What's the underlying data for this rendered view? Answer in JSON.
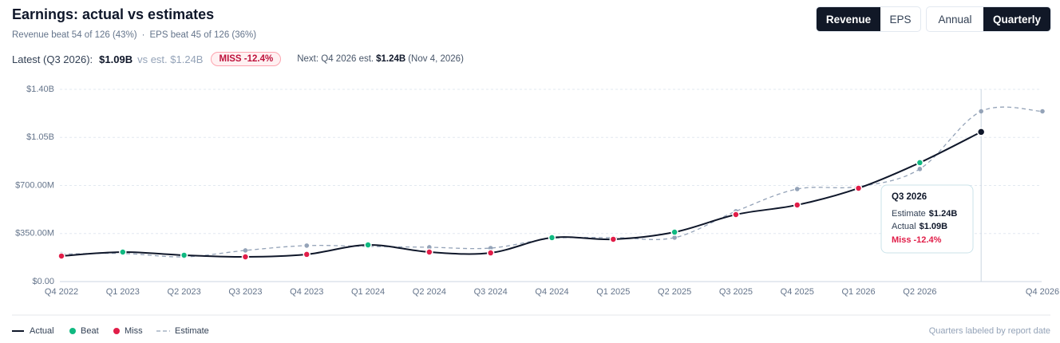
{
  "chart_data": {
    "type": "line",
    "title": "Earnings: actual vs estimates",
    "subtitle": [
      "Revenue beat 54 of 126 (43%)",
      "EPS beat 45 of 126 (36%)"
    ],
    "categories": [
      "Q4 2022",
      "Q1 2023",
      "Q2 2023",
      "Q3 2023",
      "Q4 2023",
      "Q1 2024",
      "Q2 2024",
      "Q3 2024",
      "Q4 2024",
      "Q1 2025",
      "Q2 2025",
      "Q3 2025",
      "Q4 2025",
      "Q1 2026",
      "Q2 2026",
      null,
      "Q4 2026"
    ],
    "series": [
      {
        "name": "Actual",
        "color": "#0f172a",
        "values": [
          186000000,
          215000000,
          192000000,
          180000000,
          198000000,
          267000000,
          215000000,
          209000000,
          320000000,
          308000000,
          360000000,
          488000000,
          558000000,
          680000000,
          866000000,
          1090000000,
          null
        ]
      },
      {
        "name": "Estimate",
        "color": "#94a3b8",
        "values": [
          200000000,
          205000000,
          180000000,
          227000000,
          262000000,
          256000000,
          250000000,
          244000000,
          314000000,
          320000000,
          320000000,
          512000000,
          674000000,
          692000000,
          820000000,
          1240000000,
          1240000000
        ]
      }
    ],
    "markers": [
      {
        "name": "Beat",
        "color": "#10b981"
      },
      {
        "name": "Miss",
        "color": "#e11d48"
      }
    ],
    "ylim": [
      0,
      1400000000
    ],
    "yticks": [
      {
        "value": 0,
        "label": "$0.00"
      },
      {
        "value": 350000000,
        "label": "$350.00M"
      },
      {
        "value": 700000000,
        "label": "$700.00M"
      },
      {
        "value": 1050000000,
        "label": "$1.05B"
      },
      {
        "value": 1400000000,
        "label": "$1.40B"
      }
    ],
    "grid": true,
    "tooltip": {
      "title": "Q3 2026",
      "rows": [
        {
          "label": "Estimate",
          "value": "$1.24B"
        },
        {
          "label": "Actual",
          "value": "$1.09B"
        }
      ],
      "status": "Miss -12.4%"
    },
    "note": "Quarters labeled by report date"
  },
  "controls": {
    "metric": [
      "Revenue",
      "EPS"
    ],
    "period": [
      "Annual",
      "Quarterly"
    ]
  },
  "latest": {
    "label": "Latest (Q3 2026):",
    "actual": "$1.09B",
    "estimate": "vs est. $1.24B",
    "badge": "MISS -12.4%",
    "next_label": "Next: Q4 2026 est.",
    "next_value": "$1.24B",
    "next_date": "(Nov 4, 2026)"
  }
}
